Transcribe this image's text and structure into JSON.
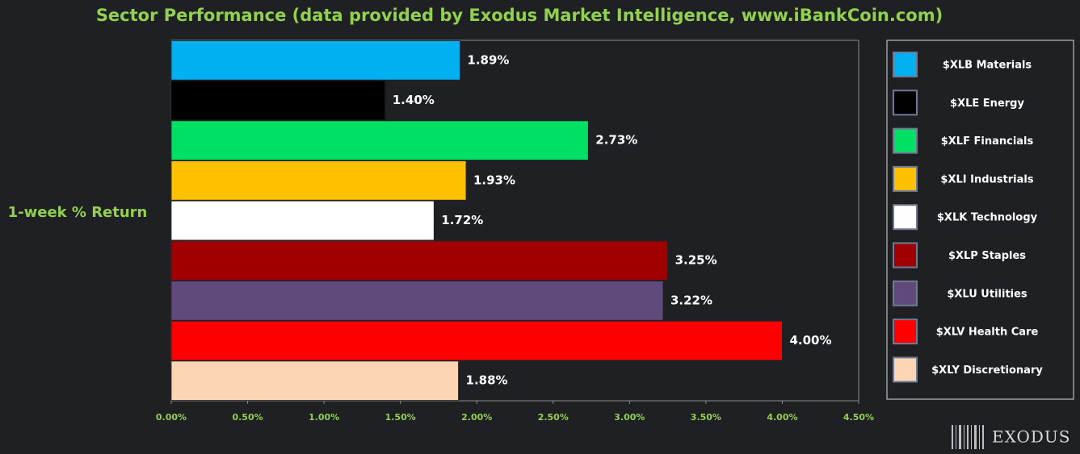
{
  "chart_data": {
    "type": "bar",
    "orientation": "horizontal",
    "title": "Sector Performance (data provided by Exodus Market Intelligence, www.iBankCoin.com)",
    "y_label": "1-week % Return",
    "categories": [
      "$XLB Materials",
      "$XLE Energy",
      "$XLF Financials",
      "$XLI Industrials",
      "$XLK Technology",
      "$XLP Staples",
      "$XLU Utilities",
      "$XLV Health Care",
      "$XLY Discretionary"
    ],
    "values": [
      1.89,
      1.4,
      2.73,
      1.93,
      1.72,
      3.25,
      3.22,
      4.0,
      1.88
    ],
    "value_labels": [
      "1.89%",
      "1.40%",
      "2.73%",
      "1.93%",
      "1.72%",
      "3.25%",
      "3.22%",
      "4.00%",
      "1.88%"
    ],
    "colors": [
      "#00b0f0",
      "#000000",
      "#00e064",
      "#ffc000",
      "#ffffff",
      "#a00000",
      "#604a7b",
      "#ff0000",
      "#fcd5b5"
    ],
    "xlim": [
      0,
      4.5
    ],
    "xticks": [
      {
        "value": 0,
        "label": "0.00%"
      },
      {
        "value": 0.5,
        "label": "0.50%"
      },
      {
        "value": 1,
        "label": "1.00%"
      },
      {
        "value": 1.5,
        "label": "1.50%"
      },
      {
        "value": 2,
        "label": "2.00%"
      },
      {
        "value": 2.5,
        "label": "2.50%"
      },
      {
        "value": 3,
        "label": "3.00%"
      },
      {
        "value": 3.5,
        "label": "3.50%"
      },
      {
        "value": 4,
        "label": "4.00%"
      },
      {
        "value": 4.5,
        "label": "4.50%"
      }
    ],
    "grid": false,
    "legend": "right",
    "logo": "EXODUS"
  }
}
